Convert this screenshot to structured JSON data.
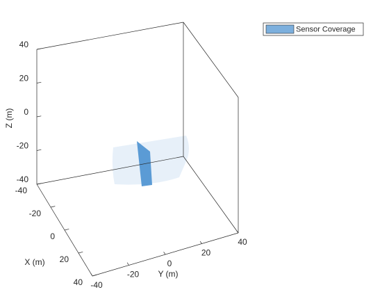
{
  "chart_data": {
    "type": "surface3d",
    "series": [
      {
        "name": "Sensor Coverage",
        "color": "#5b9bd5"
      }
    ],
    "xlabel": "X (m)",
    "ylabel": "Y (m)",
    "zlabel": "Z (m)",
    "xlim": [
      -40,
      40
    ],
    "ylim": [
      -40,
      40
    ],
    "zlim": [
      -40,
      40
    ],
    "xticks": [
      -40,
      -20,
      0,
      20,
      40
    ],
    "yticks": [
      -40,
      -20,
      0,
      20,
      40
    ],
    "zticks": [
      -40,
      -20,
      0,
      20,
      40
    ],
    "legend": "top-right",
    "grid": false
  }
}
